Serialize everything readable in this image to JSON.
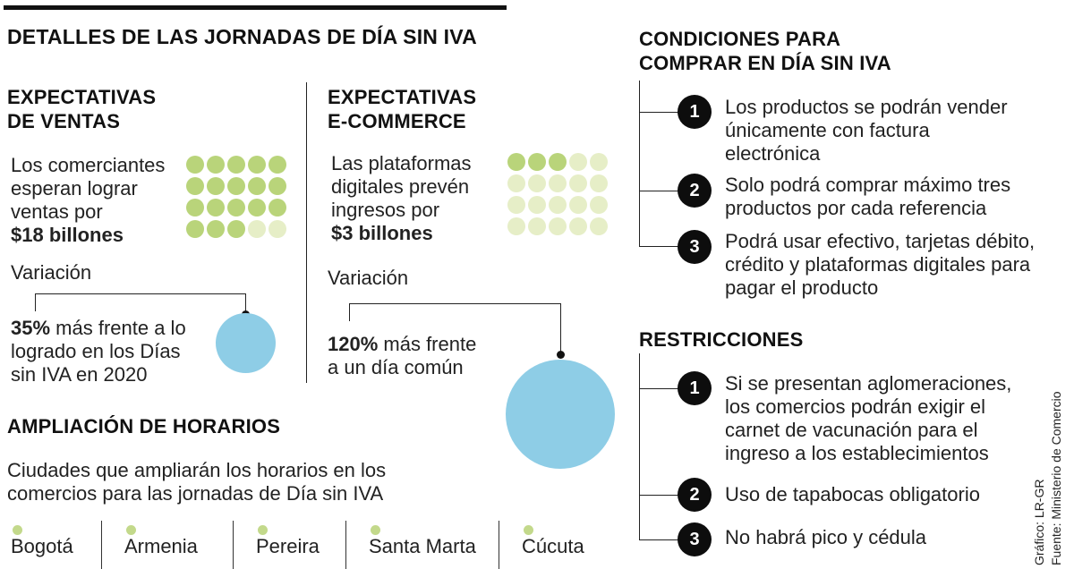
{
  "title": "DETALLES DE LAS JORNADAS DE DÍA SIN IVA",
  "colors": {
    "dot_dark": "#b9d47a",
    "dot_light": "#e6eec7",
    "circle": "#8ecde6",
    "city_dot": "#c3d98b"
  },
  "ventas": {
    "heading_line1": "EXPECTATIVAS",
    "heading_line2": "DE VENTAS",
    "text_line1": "Los comerciantes",
    "text_line2": "esperan lograr",
    "text_line3": "ventas por",
    "amount": "$18 billones",
    "variation_label": "Variación",
    "pct": "35%",
    "pct_rest": " más frente a lo",
    "line2": "logrado en los Días",
    "line3": "sin IVA en 2020",
    "dots_total": 20,
    "dots_filled": 18
  },
  "ecommerce": {
    "heading_line1": "EXPECTATIVAS",
    "heading_line2": "E-COMMERCE",
    "text_line1": "Las plataformas",
    "text_line2": "digitales prevén",
    "text_line3": "ingresos por",
    "amount": "$3 billones",
    "variation_label": "Variación",
    "pct": "120%",
    "pct_rest": " más frente",
    "line2": "a un día común",
    "dots_total": 20,
    "dots_filled": 3
  },
  "horarios": {
    "heading": "AMPLIACIÓN DE HORARIOS",
    "text_line1": "Ciudades que ampliarán los horarios en los",
    "text_line2": "comercios para las jornadas de Día sin IVA",
    "cities": [
      "Bogotá",
      "Armenia",
      "Pereira",
      "Santa Marta",
      "Cúcuta"
    ]
  },
  "condiciones": {
    "heading_line1": "CONDICIONES PARA",
    "heading_line2": "COMPRAR EN DÍA SIN IVA",
    "items": [
      {
        "num": "1",
        "lines": [
          "Los productos se podrán vender",
          "únicamente con factura",
          "electrónica"
        ]
      },
      {
        "num": "2",
        "lines": [
          "Solo podrá comprar máximo tres",
          "productos por cada referencia"
        ]
      },
      {
        "num": "3",
        "lines": [
          "Podrá usar efectivo, tarjetas débito,",
          "crédito y plataformas digitales para",
          "pagar el producto"
        ]
      }
    ]
  },
  "restricciones": {
    "heading": "RESTRICCIONES",
    "items": [
      {
        "num": "1",
        "lines": [
          "Si se presentan aglomeraciones,",
          "los comercios podrán exigir el",
          "carnet de vacunación para el",
          "ingreso a los establecimientos"
        ]
      },
      {
        "num": "2",
        "lines": [
          "Uso de tapabocas obligatorio"
        ]
      },
      {
        "num": "3",
        "lines": [
          "No habrá pico y cédula"
        ]
      }
    ]
  },
  "credits": {
    "grafico": "Gráfico: LR-GR",
    "fuente": "Fuente: Ministerio de Comercio"
  }
}
